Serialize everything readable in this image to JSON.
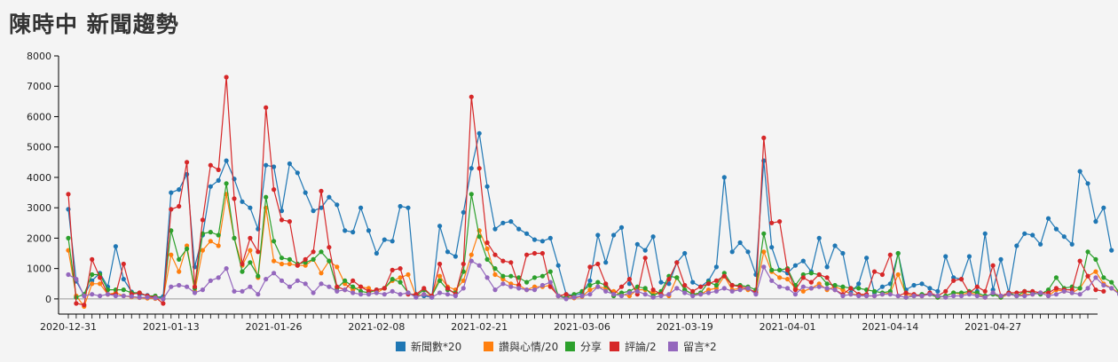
{
  "page": {
    "title": "陳時中 新聞趨勢"
  },
  "chart_data": {
    "type": "line",
    "title": "",
    "xlabel": "",
    "ylabel": "",
    "ylim": [
      -500,
      8000
    ],
    "y_ticks": [
      0,
      1000,
      2000,
      3000,
      4000,
      5000,
      6000,
      7000,
      8000
    ],
    "x_tick_labels": [
      "2020-12-31",
      "2021-01-13",
      "2021-01-26",
      "2021-02-08",
      "2021-02-21",
      "2021-03-06",
      "2021-03-19",
      "2021-04-01",
      "2021-04-14",
      "2021-04-27"
    ],
    "x_tick_positions": [
      0,
      13,
      26,
      39,
      52,
      65,
      78,
      91,
      104,
      117
    ],
    "x_count": 130,
    "legend_position": "bottom",
    "grid": false,
    "series": [
      {
        "name": "新聞數*20",
        "color": "#1f77b4",
        "values": [
          2950,
          580,
          120,
          600,
          850,
          400,
          1730,
          650,
          230,
          150,
          120,
          50,
          80,
          3500,
          3600,
          4100,
          1050,
          2100,
          3700,
          3900,
          4550,
          3950,
          3200,
          3000,
          2300,
          4400,
          4350,
          2900,
          4450,
          4150,
          3500,
          2900,
          3000,
          3350,
          3100,
          2250,
          2200,
          3000,
          2250,
          1500,
          1950,
          1900,
          3050,
          3000,
          150,
          100,
          50,
          2400,
          1550,
          1400,
          2850,
          4300,
          5450,
          3700,
          2300,
          2500,
          2550,
          2300,
          2150,
          1950,
          1900,
          2000,
          1100,
          150,
          120,
          180,
          600,
          2100,
          1200,
          2100,
          2350,
          500,
          1800,
          1600,
          2050,
          550,
          500,
          1200,
          1500,
          550,
          400,
          600,
          1050,
          4000,
          1550,
          1850,
          1550,
          800,
          4550,
          1700,
          950,
          850,
          1100,
          1250,
          900,
          2000,
          1050,
          1750,
          1500,
          200,
          500,
          1350,
          200,
          400,
          500,
          1500,
          300,
          450,
          500,
          350,
          250,
          1400,
          700,
          650,
          1400,
          250,
          2150,
          300,
          1300,
          200,
          1750,
          2150,
          2100,
          1800,
          2650,
          2300,
          2050,
          1800,
          4200,
          3800,
          2550,
          3000,
          1600
        ]
      },
      {
        "name": "讚與心情/20",
        "color": "#ff7f0e",
        "values": [
          1600,
          100,
          -250,
          500,
          500,
          150,
          200,
          100,
          60,
          40,
          20,
          10,
          0,
          1450,
          900,
          1750,
          250,
          1600,
          1900,
          1750,
          3450,
          2000,
          1100,
          1600,
          700,
          3000,
          1250,
          1150,
          1150,
          1100,
          1100,
          1300,
          850,
          1250,
          1050,
          500,
          300,
          400,
          350,
          200,
          350,
          600,
          700,
          800,
          100,
          150,
          100,
          750,
          400,
          300,
          600,
          1450,
          2250,
          1650,
          800,
          650,
          500,
          450,
          300,
          400,
          400,
          450,
          100,
          50,
          30,
          80,
          300,
          400,
          350,
          250,
          150,
          100,
          300,
          300,
          200,
          150,
          100,
          700,
          300,
          150,
          150,
          300,
          350,
          750,
          300,
          350,
          300,
          250,
          1550,
          900,
          700,
          650,
          350,
          250,
          350,
          500,
          300,
          400,
          300,
          150,
          150,
          100,
          100,
          150,
          200,
          800,
          150,
          100,
          100,
          150,
          50,
          100,
          200,
          150,
          200,
          150,
          50,
          200,
          50,
          150,
          100,
          150,
          150,
          200,
          100,
          300,
          250,
          200,
          350,
          750,
          900,
          500,
          350,
          200
        ]
      },
      {
        "name": "分享",
        "color": "#2ca02c",
        "values": [
          2000,
          50,
          150,
          800,
          800,
          300,
          300,
          300,
          200,
          200,
          100,
          100,
          0,
          2250,
          1300,
          1650,
          350,
          2150,
          2200,
          2100,
          3800,
          2000,
          900,
          1200,
          750,
          3350,
          1900,
          1350,
          1300,
          1150,
          1200,
          1300,
          1550,
          1250,
          350,
          600,
          400,
          250,
          200,
          300,
          350,
          650,
          550,
          200,
          100,
          300,
          100,
          600,
          300,
          200,
          900,
          3450,
          2050,
          1300,
          1000,
          750,
          750,
          700,
          550,
          700,
          750,
          900,
          100,
          50,
          150,
          250,
          450,
          550,
          450,
          100,
          200,
          250,
          400,
          350,
          100,
          250,
          750,
          700,
          300,
          150,
          200,
          550,
          450,
          850,
          450,
          450,
          400,
          300,
          2150,
          950,
          950,
          1000,
          450,
          800,
          850,
          800,
          500,
          450,
          400,
          350,
          350,
          300,
          250,
          200,
          250,
          1500,
          50,
          100,
          150,
          150,
          50,
          100,
          200,
          200,
          250,
          200,
          100,
          150,
          50,
          200,
          100,
          250,
          200,
          150,
          300,
          700,
          350,
          400,
          350,
          1550,
          1300,
          700,
          550,
          200
        ]
      },
      {
        "name": "評論/2",
        "color": "#d62728",
        "values": [
          3450,
          -150,
          -200,
          1300,
          700,
          150,
          150,
          1150,
          150,
          200,
          100,
          50,
          -150,
          2950,
          3050,
          4500,
          400,
          2600,
          4400,
          4250,
          7300,
          3300,
          1150,
          2000,
          1550,
          6300,
          3600,
          2600,
          2550,
          1100,
          1300,
          1550,
          3550,
          1700,
          400,
          300,
          600,
          400,
          250,
          300,
          350,
          950,
          1000,
          150,
          150,
          350,
          100,
          1150,
          350,
          150,
          1150,
          6650,
          4300,
          1850,
          1450,
          1250,
          1200,
          450,
          1450,
          1500,
          1500,
          400,
          100,
          150,
          50,
          100,
          1050,
          1150,
          500,
          150,
          400,
          650,
          150,
          1350,
          300,
          150,
          650,
          1200,
          450,
          250,
          400,
          500,
          600,
          750,
          450,
          400,
          350,
          200,
          5300,
          2500,
          2550,
          950,
          300,
          700,
          550,
          800,
          700,
          300,
          150,
          350,
          150,
          150,
          900,
          800,
          1450,
          100,
          200,
          150,
          100,
          200,
          100,
          250,
          600,
          650,
          200,
          400,
          250,
          1100,
          100,
          200,
          200,
          250,
          250,
          200,
          200,
          350,
          300,
          300,
          1250,
          750,
          300,
          250
        ]
      },
      {
        "name": "留言*2",
        "color": "#9467bd",
        "values": [
          800,
          650,
          100,
          150,
          100,
          150,
          100,
          100,
          80,
          50,
          50,
          30,
          0,
          400,
          450,
          400,
          200,
          300,
          600,
          700,
          1000,
          250,
          250,
          400,
          150,
          650,
          850,
          600,
          400,
          600,
          500,
          200,
          500,
          400,
          250,
          300,
          200,
          150,
          150,
          200,
          150,
          250,
          150,
          200,
          50,
          150,
          50,
          200,
          150,
          100,
          350,
          1250,
          1100,
          700,
          300,
          500,
          400,
          350,
          300,
          300,
          450,
          550,
          100,
          0,
          50,
          100,
          150,
          400,
          250,
          150,
          100,
          200,
          250,
          150,
          50,
          100,
          150,
          350,
          200,
          100,
          150,
          200,
          250,
          350,
          250,
          300,
          350,
          150,
          1050,
          600,
          400,
          350,
          150,
          400,
          350,
          400,
          350,
          300,
          100,
          150,
          100,
          100,
          100,
          150,
          150,
          100,
          50,
          100,
          100,
          150,
          100,
          50,
          100,
          100,
          150,
          100,
          50,
          200,
          100,
          150,
          100,
          100,
          150,
          200,
          100,
          150,
          250,
          200,
          150,
          350,
          700,
          450,
          350,
          150
        ]
      }
    ]
  }
}
